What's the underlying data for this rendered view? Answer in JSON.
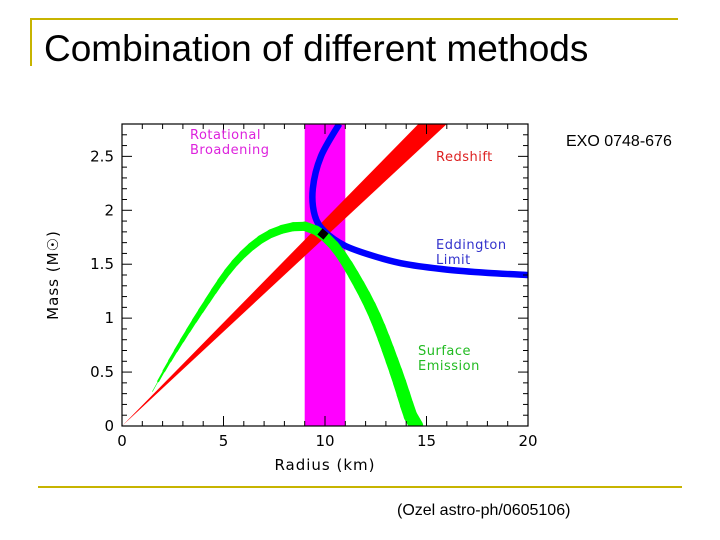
{
  "slide": {
    "title": "Combination of different methods",
    "object": "EXO 0748-676",
    "source": "(Ozel astro-ph/0605106)",
    "frame_color": "#c7b400"
  },
  "chart_data": {
    "type": "area",
    "xlabel": "Radius (km)",
    "ylabel": "Mass (M☉)",
    "xlim": [
      0,
      20
    ],
    "ylim": [
      0,
      2.8
    ],
    "xticks": [
      0,
      5,
      10,
      15,
      20
    ],
    "yticks": [
      0,
      0.5,
      1,
      1.5,
      2,
      2.5
    ],
    "xtick_labels": [
      "0",
      "5",
      "10",
      "15",
      "20"
    ],
    "ytick_labels": [
      "0",
      "0.5",
      "1",
      "1.5",
      "2",
      "2.5"
    ],
    "grid": false,
    "series": [
      {
        "name": "Rotational Broadening",
        "label_lines": [
          "Rotational",
          "Broadening"
        ],
        "color": "#ff00ff",
        "kind": "band",
        "x_range": [
          9,
          11
        ]
      },
      {
        "name": "Redshift",
        "label_lines": [
          "Redshift"
        ],
        "color": "#ff0000",
        "kind": "wedge",
        "lower": [
          [
            0,
            0
          ],
          [
            16,
            2.8
          ]
        ],
        "upper": [
          [
            0,
            0
          ],
          [
            14.6,
            2.8
          ]
        ]
      },
      {
        "name": "Eddington Limit",
        "label_lines": [
          "Eddington",
          "Limit"
        ],
        "color": "#0000ff",
        "kind": "curve",
        "width_data": 0.06,
        "points": [
          [
            10.7,
            2.8
          ],
          [
            9.8,
            2.5
          ],
          [
            9.4,
            2.2
          ],
          [
            9.5,
            1.95
          ],
          [
            10,
            1.8
          ],
          [
            11,
            1.67
          ],
          [
            12.5,
            1.57
          ],
          [
            14,
            1.5
          ],
          [
            16,
            1.45
          ],
          [
            18,
            1.42
          ],
          [
            20,
            1.4
          ]
        ]
      },
      {
        "name": "Surface Emission",
        "label_lines": [
          "Surface",
          "Emission"
        ],
        "color": "#00ff00",
        "kind": "curve",
        "width_start": 0.005,
        "width_end": 0.13,
        "points": [
          [
            1.5,
            0.32
          ],
          [
            2.5,
            0.65
          ],
          [
            4,
            1.1
          ],
          [
            5.5,
            1.5
          ],
          [
            7,
            1.75
          ],
          [
            8.5,
            1.85
          ],
          [
            9.5,
            1.82
          ],
          [
            10.5,
            1.66
          ],
          [
            11.5,
            1.37
          ],
          [
            12.5,
            1.0
          ],
          [
            13.5,
            0.5
          ],
          [
            14.2,
            0.1
          ],
          [
            14.5,
            0
          ]
        ]
      },
      {
        "name": "",
        "label_lines": [],
        "color": "#000000",
        "kind": "marker",
        "points": [
          [
            9.9,
            1.78
          ]
        ]
      }
    ]
  }
}
